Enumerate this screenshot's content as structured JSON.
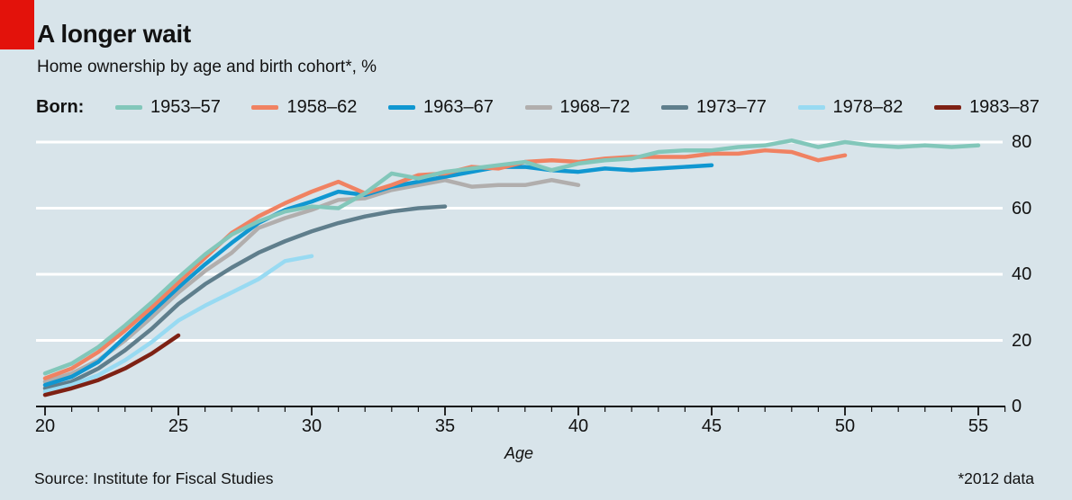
{
  "header": {
    "title": "A longer wait",
    "subtitle": "Home ownership by age and birth cohort*, %",
    "accent_color": "#E3120B"
  },
  "legend": {
    "label": "Born:"
  },
  "chart_data": {
    "type": "line",
    "title": "A longer wait",
    "subtitle": "Home ownership by age and birth cohort*, %",
    "xlabel": "Age",
    "ylabel": "%",
    "xlim": [
      20,
      56
    ],
    "ylim": [
      0,
      80
    ],
    "xticks": [
      20,
      25,
      30,
      35,
      40,
      45,
      50,
      55
    ],
    "yticks": [
      0,
      20,
      40,
      60,
      80
    ],
    "grid": "horizontal",
    "legend_position": "top",
    "background_color": "#D8E4EA",
    "gridline_color": "#FFFFFF",
    "axis_color": "#121212",
    "series": [
      {
        "name": "1953–57",
        "color": "#82C7BA",
        "start_age": 20,
        "values": [
          10,
          13,
          18,
          24.5,
          31.5,
          39,
          46,
          52,
          56,
          59,
          60.5,
          60,
          64.5,
          70.5,
          69,
          71,
          72,
          73,
          74,
          71.5,
          73.5,
          74.5,
          75,
          77,
          77.5,
          77.5,
          78.5,
          79,
          80.5,
          78.5,
          80,
          79,
          78.5,
          79,
          78.5,
          79
        ]
      },
      {
        "name": "1958–62",
        "color": "#F08262",
        "start_age": 20,
        "values": [
          8.5,
          11.5,
          16.5,
          23,
          30,
          37.5,
          45,
          52.5,
          57.5,
          61.5,
          65,
          68,
          64.5,
          67,
          70,
          70.5,
          72.5,
          72,
          74,
          74.5,
          74,
          75,
          75.5,
          75.5,
          75.5,
          76.5,
          76.5,
          77.5,
          77,
          74.5,
          76
        ]
      },
      {
        "name": "1963–67",
        "color": "#1097D1",
        "start_age": 20,
        "values": [
          6.5,
          9,
          13.5,
          21,
          28.5,
          36,
          43,
          49.5,
          55.5,
          59.5,
          62,
          65,
          64,
          66.5,
          68,
          69.5,
          71,
          72.5,
          72.5,
          71.5,
          71,
          72,
          71.5,
          72,
          72.5,
          73
        ]
      },
      {
        "name": "1968–72",
        "color": "#B1AEAD",
        "start_age": 20,
        "values": [
          7.5,
          10,
          14,
          20,
          27,
          34.5,
          41,
          46.5,
          54,
          57,
          59.5,
          62.5,
          63,
          65.5,
          67,
          68.5,
          66.5,
          67,
          67,
          68.5,
          67
        ]
      },
      {
        "name": "1973–77",
        "color": "#5F7E8C",
        "start_age": 20,
        "values": [
          5.5,
          7.5,
          11.5,
          17,
          23.5,
          31,
          37,
          42,
          46.5,
          50,
          53,
          55.5,
          57.5,
          59,
          60,
          60.5
        ]
      },
      {
        "name": "1978–82",
        "color": "#98DAF2",
        "start_age": 20,
        "values": [
          4.5,
          6.5,
          9.5,
          14,
          19.5,
          26,
          30.5,
          34.5,
          38.5,
          44,
          45.5
        ]
      },
      {
        "name": "1983–87",
        "color": "#7E2114",
        "start_age": 20,
        "values": [
          3.5,
          5.5,
          8,
          11.5,
          16,
          21.5
        ]
      }
    ]
  },
  "footer": {
    "source": "Source: Institute for Fiscal Studies",
    "note": "*2012 data"
  }
}
